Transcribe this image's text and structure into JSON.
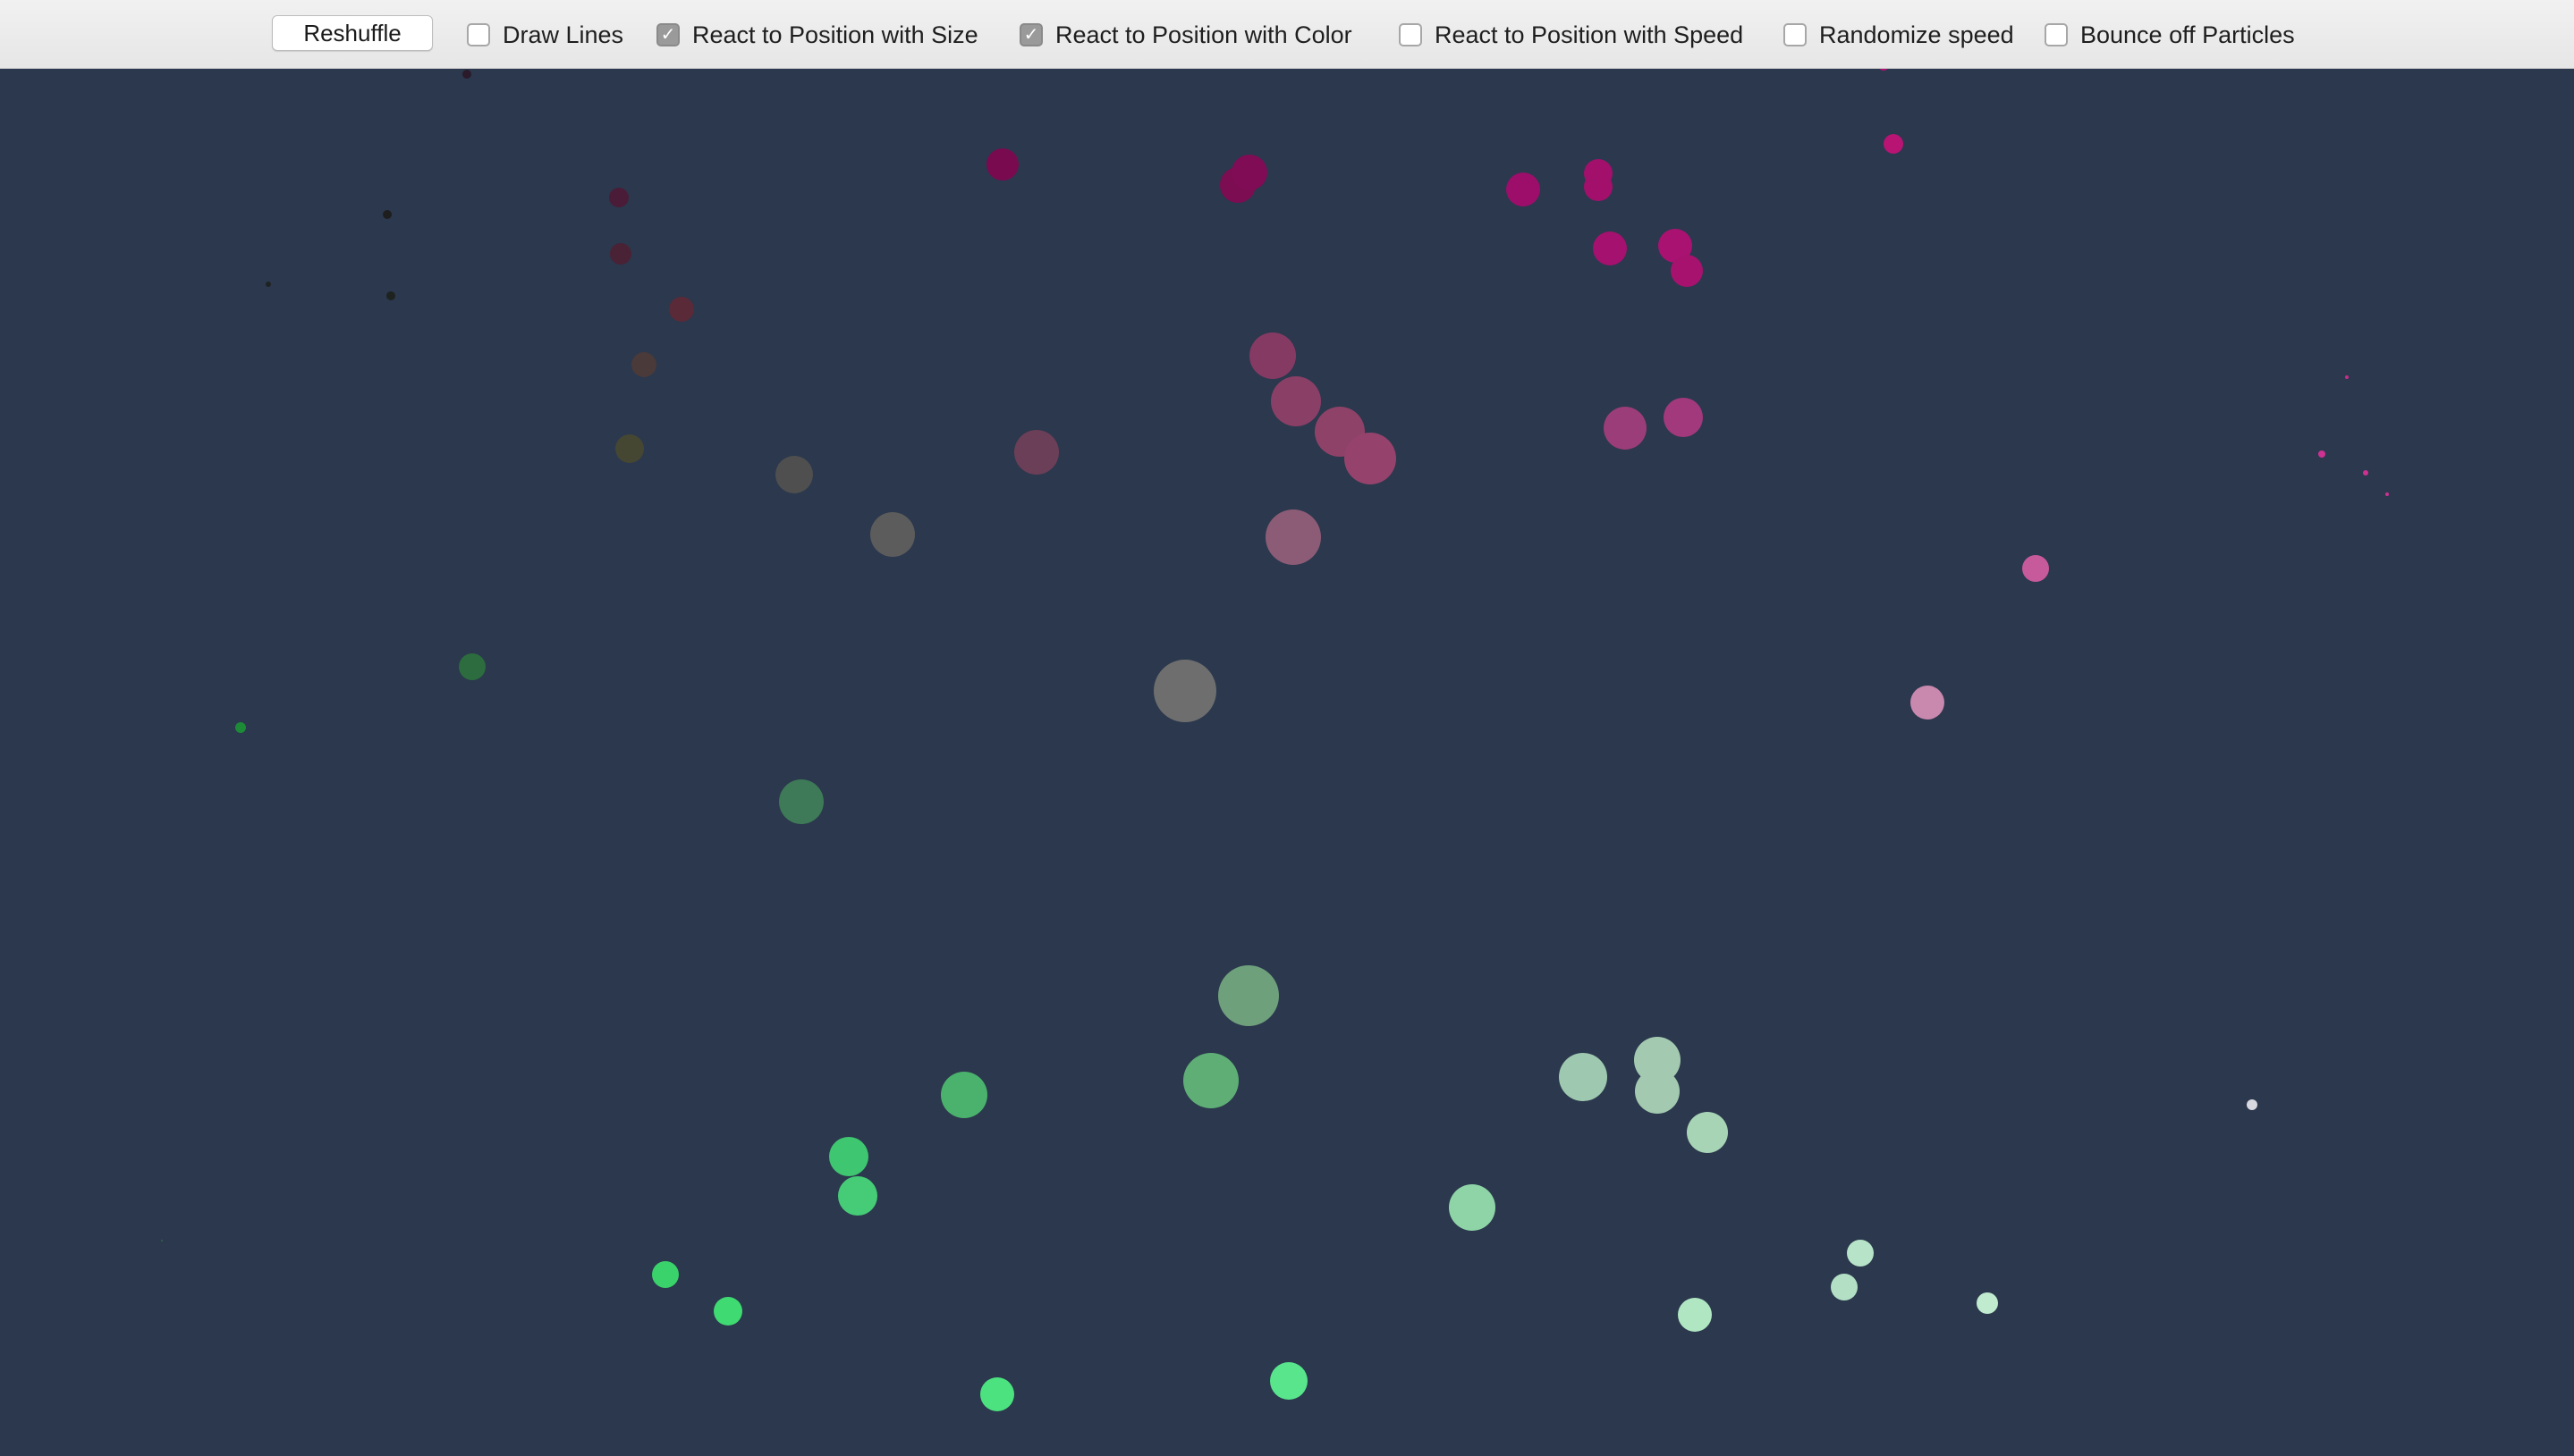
{
  "toolbar": {
    "reshuffle_label": "Reshuffle",
    "options": [
      {
        "label": "Draw Lines",
        "checked": false
      },
      {
        "label": "React to Position with Size",
        "checked": true
      },
      {
        "label": "React to Position with Color",
        "checked": true
      },
      {
        "label": "React to Position with Speed",
        "checked": false
      },
      {
        "label": "Randomize speed",
        "checked": false
      },
      {
        "label": "Bounce off Particles",
        "checked": false
      }
    ]
  },
  "canvas": {
    "background": "#2b384d"
  }
}
